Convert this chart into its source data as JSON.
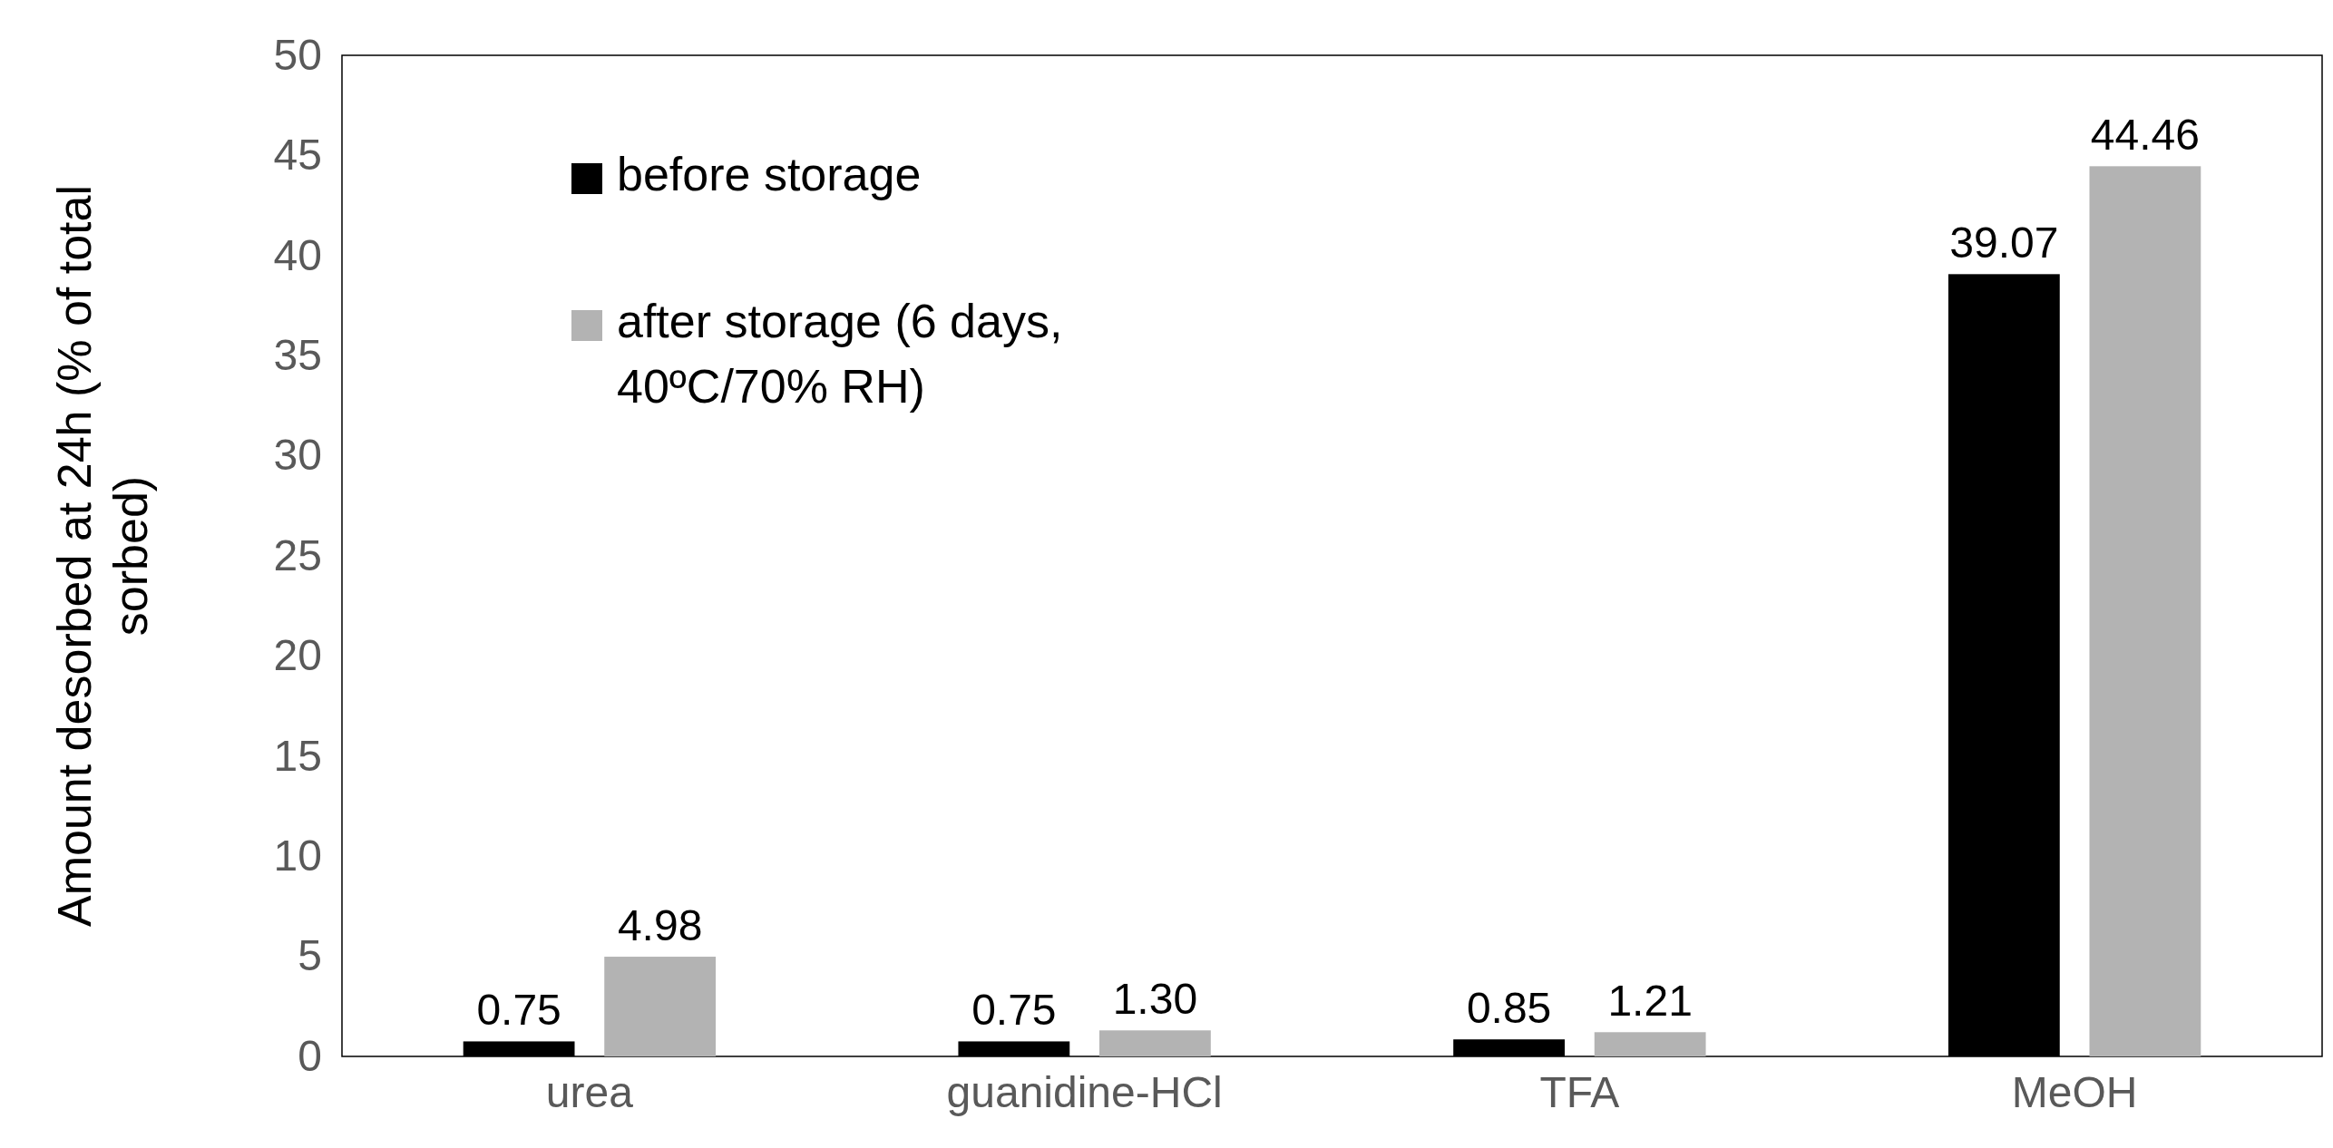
{
  "chart_data": {
    "type": "bar",
    "ylabel": "Amount desorbed at 24h (% of total sorbed)",
    "categories": [
      "urea",
      "guanidine-HCl",
      "TFA",
      "MeOH"
    ],
    "series": [
      {
        "name": "before storage",
        "color": "#000000",
        "values": [
          0.75,
          0.75,
          0.85,
          39.07
        ],
        "value_labels": [
          "0.75",
          "0.75",
          "0.85",
          "39.07"
        ]
      },
      {
        "name": "after storage (6 days, 40ºC/70% RH)",
        "color": "#b3b3b3",
        "values": [
          4.98,
          1.3,
          1.21,
          44.46
        ],
        "value_labels": [
          "4.98",
          "1.30",
          "1.21",
          "44.46"
        ]
      }
    ],
    "ylim": [
      0,
      50
    ],
    "yticks": [
      0,
      5,
      10,
      15,
      20,
      25,
      30,
      35,
      40,
      45,
      50
    ],
    "legend": "top left",
    "grid": false
  }
}
